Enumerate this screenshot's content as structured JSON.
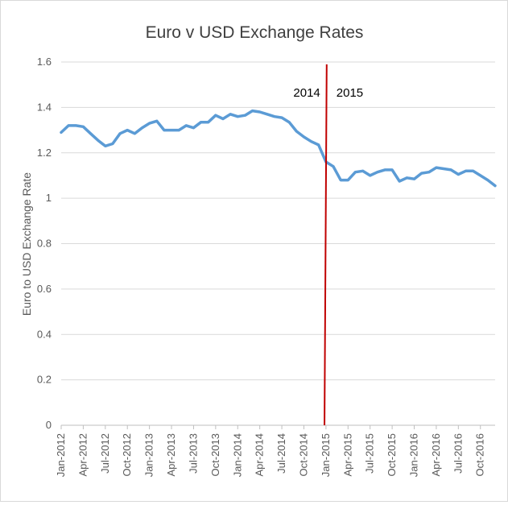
{
  "chart_data": {
    "type": "line",
    "title": "Euro v USD Exchange Rates",
    "xlabel": "",
    "ylabel": "Euro to USD Exchange Rate",
    "ylim": [
      0,
      1.6
    ],
    "yticks": [
      0,
      0.2,
      0.4,
      0.6,
      0.8,
      1,
      1.2,
      1.4,
      1.6
    ],
    "ytick_labels": [
      "0",
      "0.2",
      "0.4",
      "0.6",
      "0.8",
      "1",
      "1.2",
      "1.4",
      "1.6"
    ],
    "grid": true,
    "legend": "none",
    "xtick_labels": [
      "Jan-2012",
      "Apr-2012",
      "Jul-2012",
      "Oct-2012",
      "Jan-2013",
      "Apr-2013",
      "Jul-2013",
      "Oct-2013",
      "Jan-2014",
      "Apr-2014",
      "Jul-2014",
      "Oct-2014",
      "Jan-2015",
      "Apr-2015",
      "Jul-2015",
      "Oct-2015",
      "Jan-2016",
      "Apr-2016",
      "Jul-2016",
      "Oct-2016"
    ],
    "series": [
      {
        "name": "Euro to USD",
        "color": "#5b9bd5",
        "values": [
          1.29,
          1.32,
          1.32,
          1.315,
          1.285,
          1.255,
          1.23,
          1.24,
          1.285,
          1.3,
          1.285,
          1.31,
          1.33,
          1.34,
          1.3,
          1.3,
          1.3,
          1.32,
          1.31,
          1.335,
          1.335,
          1.365,
          1.35,
          1.37,
          1.36,
          1.365,
          1.385,
          1.38,
          1.37,
          1.36,
          1.355,
          1.335,
          1.295,
          1.27,
          1.25,
          1.235,
          1.16,
          1.14,
          1.08,
          1.08,
          1.115,
          1.12,
          1.1,
          1.115,
          1.125,
          1.125,
          1.075,
          1.09,
          1.085,
          1.11,
          1.115,
          1.135,
          1.13,
          1.125,
          1.105,
          1.12,
          1.12,
          1.1,
          1.08,
          1.055
        ]
      }
    ],
    "divider": {
      "color": "#c00000",
      "x_from_index": 35.8,
      "x_to_index": 36.1,
      "y_top": 1.59,
      "y_bottom": 0
    },
    "annotations": [
      {
        "text": "2014",
        "side": "left"
      },
      {
        "text": "2015",
        "side": "right"
      }
    ]
  },
  "colors": {
    "grid": "#d9d9d9",
    "axis": "#bfbfbf",
    "line": "#5b9bd5",
    "divider": "#c00000"
  }
}
